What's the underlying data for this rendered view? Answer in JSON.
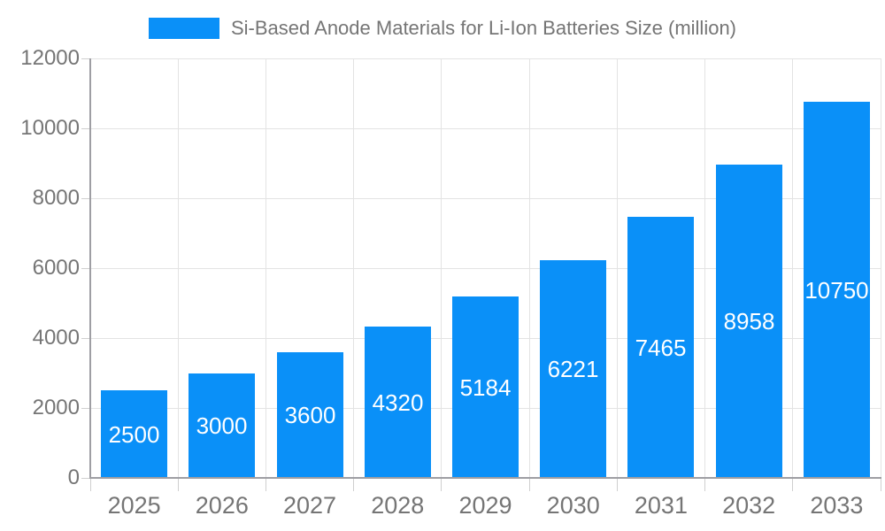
{
  "legend": {
    "label": "Si-Based Anode Materials for Li-Ion Batteries Size (million)"
  },
  "chart_data": {
    "type": "bar",
    "title": "Si-Based Anode Materials for Li-Ion Batteries Size (million)",
    "categories": [
      "2025",
      "2026",
      "2027",
      "2028",
      "2029",
      "2030",
      "2031",
      "2032",
      "2033"
    ],
    "values": [
      2500,
      3000,
      3600,
      4320,
      5184,
      6221,
      7465,
      8958,
      10750
    ],
    "value_labels": [
      "2500",
      "3000",
      "3600",
      "4320",
      "5184",
      "6221",
      "7465",
      "8958",
      "10750"
    ],
    "xlabel": "",
    "ylabel": "",
    "ylim": [
      0,
      12000
    ],
    "yticks": [
      0,
      2000,
      4000,
      6000,
      8000,
      10000,
      12000
    ],
    "ytick_labels": [
      "0",
      "2000",
      "4000",
      "6000",
      "8000",
      "10000",
      "12000"
    ],
    "grid": true,
    "legend_position": "top-center",
    "colors": {
      "bar": "#0a90f8",
      "value_label": "#ffffff",
      "axis": "#9e9ea3",
      "gridline": "#e3e3e3",
      "tick": "#cfcfcf",
      "text": "#757575"
    }
  }
}
